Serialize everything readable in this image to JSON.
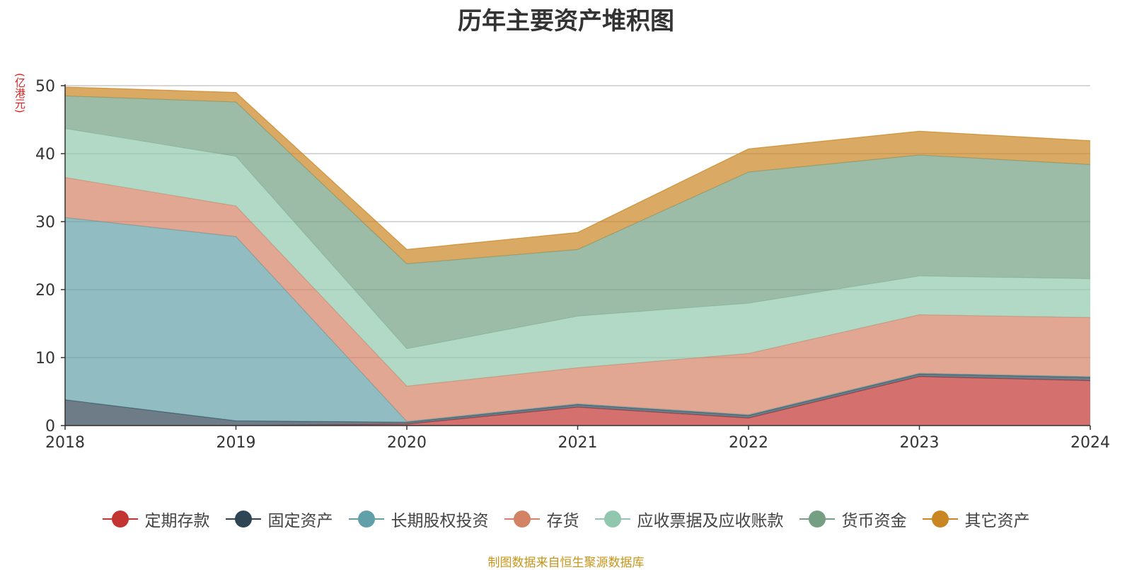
{
  "chart_data": {
    "type": "area",
    "stacked": true,
    "title": "历年主要资产堆积图",
    "ylabel": "(亿港元)",
    "x": [
      "2018",
      "2019",
      "2020",
      "2021",
      "2022",
      "2023",
      "2024"
    ],
    "ylim": [
      0,
      50
    ],
    "yticks": [
      0,
      10,
      20,
      30,
      40,
      50
    ],
    "grid": true,
    "legend_position": "bottom",
    "series": [
      {
        "name": "定期存款",
        "color": "#c23531",
        "values": [
          0,
          0,
          0.2,
          2.7,
          1.1,
          7.2,
          6.6
        ]
      },
      {
        "name": "固定资产",
        "color": "#2f4554",
        "values": [
          3.8,
          0.7,
          0.3,
          0.4,
          0.4,
          0.4,
          0.5
        ]
      },
      {
        "name": "长期股权投资",
        "color": "#61a0a8",
        "values": [
          26.8,
          27.1,
          0.1,
          0.1,
          0.1,
          0.1,
          0.1
        ]
      },
      {
        "name": "存货",
        "color": "#d48265",
        "values": [
          5.9,
          4.5,
          5.2,
          5.3,
          9.0,
          8.6,
          8.7
        ]
      },
      {
        "name": "应收票据及应收账款",
        "color": "#91c7ae",
        "values": [
          7.2,
          7.3,
          5.5,
          7.6,
          7.4,
          5.7,
          5.7
        ]
      },
      {
        "name": "货币资金",
        "color": "#749f83",
        "values": [
          4.8,
          8.0,
          12.5,
          9.8,
          19.3,
          17.8,
          16.8
        ]
      },
      {
        "name": "其它资产",
        "color": "#ca8622",
        "values": [
          1.3,
          1.4,
          2.1,
          2.5,
          3.4,
          3.5,
          3.5
        ]
      }
    ]
  },
  "footer": {
    "source": "制图数据来自恒生聚源数据库"
  }
}
